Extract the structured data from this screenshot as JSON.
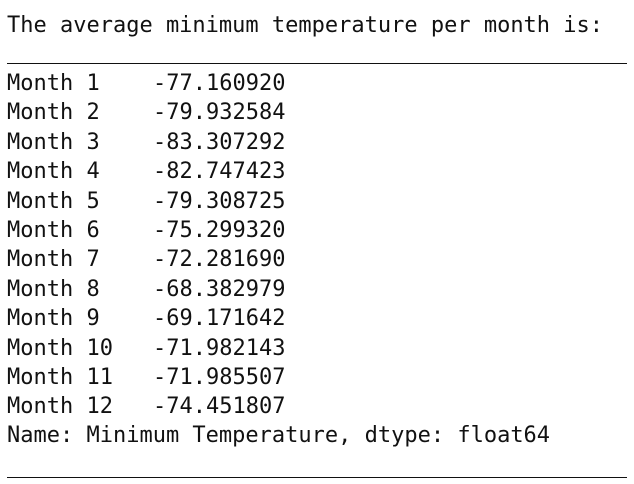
{
  "output": {
    "heading": "The average minimum temperature per month is:",
    "rows": [
      {
        "label": "Month 1",
        "value": "-77.160920"
      },
      {
        "label": "Month 2",
        "value": "-79.932584"
      },
      {
        "label": "Month 3",
        "value": "-83.307292"
      },
      {
        "label": "Month 4",
        "value": "-82.747423"
      },
      {
        "label": "Month 5",
        "value": "-79.308725"
      },
      {
        "label": "Month 6",
        "value": "-75.299320"
      },
      {
        "label": "Month 7",
        "value": "-72.281690"
      },
      {
        "label": "Month 8",
        "value": "-68.382979"
      },
      {
        "label": "Month 9",
        "value": "-69.171642"
      },
      {
        "label": "Month 10",
        "value": "-71.982143"
      },
      {
        "label": "Month 11",
        "value": "-71.985507"
      },
      {
        "label": "Month 12",
        "value": "-74.451807"
      }
    ],
    "footer": "Name: Minimum Temperature, dtype: float64"
  }
}
